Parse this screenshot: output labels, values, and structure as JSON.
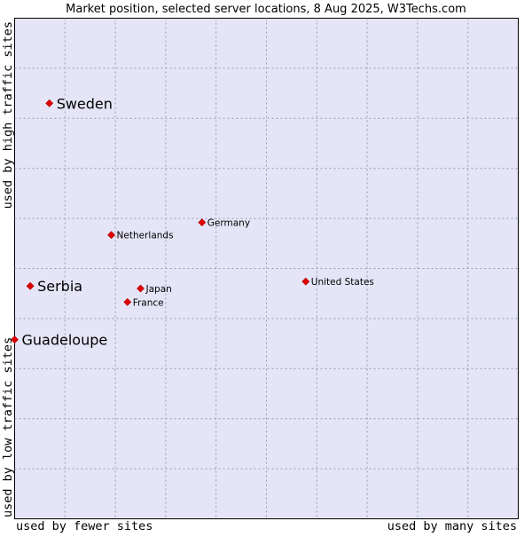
{
  "chart_data": {
    "type": "scatter",
    "title": "Market position, selected server locations, 8 Aug 2025, W3Techs.com",
    "xlabel_left": "used by fewer sites",
    "xlabel_right": "used by many sites",
    "ylabel_top": "used by high traffic sites",
    "ylabel_bottom": "used by low traffic sites",
    "xlim": [
      0,
      1
    ],
    "ylim": [
      0,
      1
    ],
    "grid": true,
    "points": [
      {
        "label": "Sweden",
        "x": 0.069,
        "y": 0.83,
        "size": "large"
      },
      {
        "label": "Germany",
        "x": 0.372,
        "y": 0.592,
        "size": "small"
      },
      {
        "label": "Netherlands",
        "x": 0.192,
        "y": 0.567,
        "size": "small"
      },
      {
        "label": "Serbia",
        "x": 0.031,
        "y": 0.465,
        "size": "large"
      },
      {
        "label": "Japan",
        "x": 0.25,
        "y": 0.46,
        "size": "small"
      },
      {
        "label": "United States",
        "x": 0.578,
        "y": 0.474,
        "size": "small"
      },
      {
        "label": "France",
        "x": 0.224,
        "y": 0.433,
        "size": "small"
      },
      {
        "label": "Guadeloupe",
        "x": 0.0,
        "y": 0.358,
        "size": "large"
      }
    ]
  }
}
